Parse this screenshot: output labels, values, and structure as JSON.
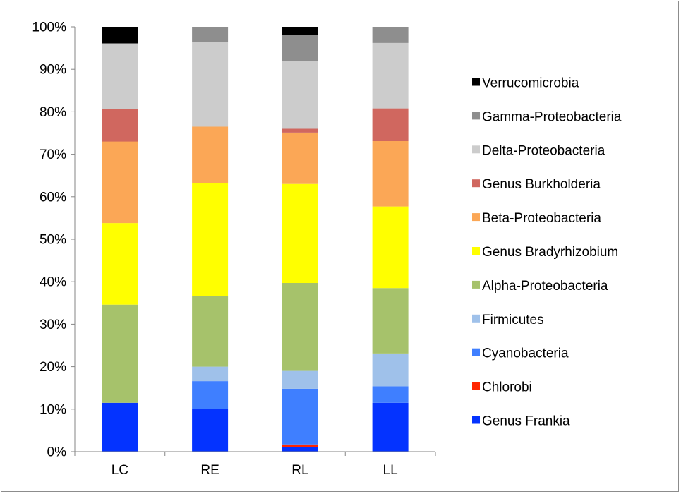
{
  "chart_data": {
    "type": "bar",
    "stacked": true,
    "normalized": true,
    "categories": [
      "LC",
      "RE",
      "RL",
      "LL"
    ],
    "ylim": [
      0,
      100
    ],
    "yticks": [
      "0%",
      "10%",
      "20%",
      "30%",
      "40%",
      "50%",
      "60%",
      "70%",
      "80%",
      "90%",
      "100%"
    ],
    "title": "",
    "xlabel": "",
    "ylabel": "",
    "grid": false,
    "legend_position": "right",
    "series": [
      {
        "name": "Genus Frankia",
        "color": "#0433ff",
        "values": [
          11.5,
          10.0,
          1.0,
          11.5
        ]
      },
      {
        "name": "Chlorobi",
        "color": "#ff2600",
        "values": [
          0.0,
          0.0,
          0.7,
          0.0
        ]
      },
      {
        "name": "Cyanobacteria",
        "color": "#3f7fff",
        "values": [
          0.0,
          6.6,
          13.1,
          3.9
        ]
      },
      {
        "name": "Firmicutes",
        "color": "#9fc1ea",
        "values": [
          0.0,
          3.4,
          4.2,
          7.7
        ]
      },
      {
        "name": "Alpha-Proteobacteria",
        "color": "#a6c26b",
        "values": [
          23.1,
          16.6,
          20.7,
          15.4
        ]
      },
      {
        "name": "Genus Bradyrhizobium",
        "color": "#ffff00",
        "values": [
          19.2,
          26.6,
          23.3,
          19.2
        ]
      },
      {
        "name": "Beta-Proteobacteria",
        "color": "#fba756",
        "values": [
          19.2,
          13.3,
          12.1,
          15.4
        ]
      },
      {
        "name": "Genus Burkholderia",
        "color": "#d0675f",
        "values": [
          7.7,
          0.0,
          0.9,
          7.7
        ]
      },
      {
        "name": "Delta-Proteobacteria",
        "color": "#cccccc",
        "values": [
          15.4,
          20.0,
          15.9,
          15.4
        ]
      },
      {
        "name": "Gamma-Proteobacteria",
        "color": "#8e8e8e",
        "values": [
          0.0,
          3.5,
          6.1,
          3.8
        ]
      },
      {
        "name": "Verrucomicrobia",
        "color": "#000000",
        "values": [
          3.9,
          0.0,
          2.0,
          0.0
        ]
      }
    ]
  }
}
